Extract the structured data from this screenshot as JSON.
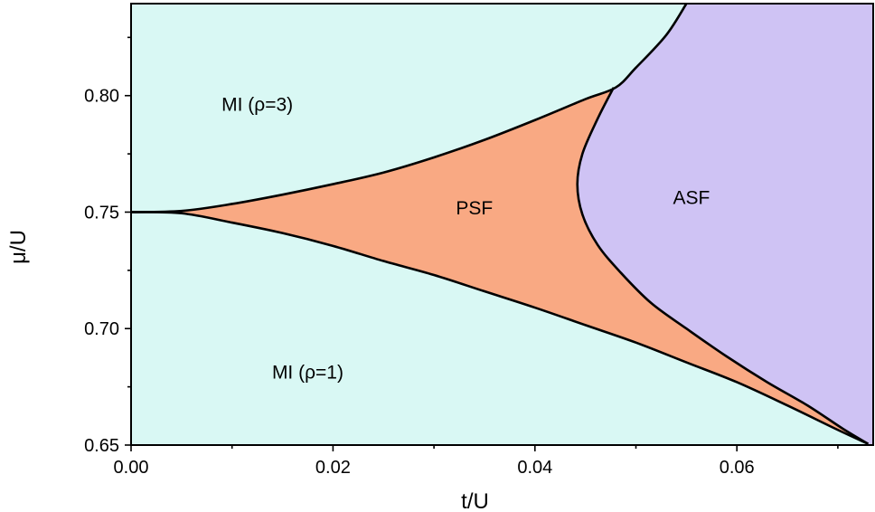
{
  "chart_data": {
    "type": "area",
    "xlabel": "t/U",
    "ylabel": "μ/U",
    "xlim": [
      0.0,
      0.0735
    ],
    "ylim": [
      0.65,
      0.8395
    ],
    "x_ticks": [
      "0.00",
      "0.02",
      "0.04",
      "0.06"
    ],
    "x_tick_values": [
      0.0,
      0.02,
      0.04,
      0.06
    ],
    "y_ticks": [
      "0.65",
      "0.70",
      "0.75",
      "0.80"
    ],
    "y_tick_values": [
      0.65,
      0.7,
      0.75,
      0.8
    ],
    "grid": false,
    "colors": {
      "mott": "#d9f8f4",
      "psf": "#f9a983",
      "asf": "#cfc3f4",
      "boundary": "#000000"
    },
    "regions": [
      {
        "label": "MI (ρ=3)",
        "x": 0.0125,
        "y": 0.7935
      },
      {
        "label": "PSF",
        "x": 0.034,
        "y": 0.749
      },
      {
        "label": "ASF",
        "x": 0.0555,
        "y": 0.7535
      },
      {
        "label": "MI (ρ=1)",
        "x": 0.0175,
        "y": 0.6785
      }
    ],
    "series": [
      {
        "name": "upper boundary",
        "x": [
          0.0,
          0.005,
          0.01,
          0.015,
          0.02,
          0.025,
          0.03,
          0.035,
          0.04,
          0.045,
          0.048,
          0.05,
          0.053,
          0.055
        ],
        "y": [
          0.75,
          0.7505,
          0.7535,
          0.7575,
          0.762,
          0.767,
          0.7735,
          0.781,
          0.7895,
          0.7985,
          0.8035,
          0.812,
          0.826,
          0.8395
        ]
      },
      {
        "name": "lower boundary",
        "x": [
          0.0,
          0.005,
          0.01,
          0.015,
          0.02,
          0.025,
          0.03,
          0.035,
          0.04,
          0.045,
          0.05,
          0.055,
          0.06,
          0.065,
          0.07,
          0.073
        ],
        "y": [
          0.75,
          0.7495,
          0.7455,
          0.741,
          0.7355,
          0.729,
          0.723,
          0.716,
          0.709,
          0.7015,
          0.694,
          0.6855,
          0.677,
          0.667,
          0.6565,
          0.6505
        ]
      },
      {
        "name": "PSF-ASF boundary",
        "x": [
          0.0478,
          0.0462,
          0.0447,
          0.0442,
          0.0447,
          0.0462,
          0.0485,
          0.0515,
          0.055,
          0.059,
          0.063,
          0.067,
          0.0705,
          0.073
        ],
        "y": [
          0.8035,
          0.79,
          0.775,
          0.762,
          0.749,
          0.736,
          0.724,
          0.711,
          0.7,
          0.688,
          0.677,
          0.667,
          0.657,
          0.6505
        ]
      }
    ]
  }
}
